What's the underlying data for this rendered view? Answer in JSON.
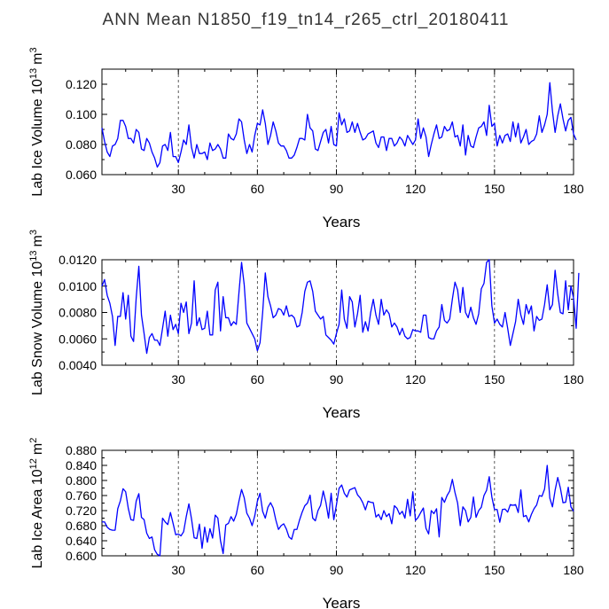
{
  "main_title": "ANN  Mean  N1850_f19_tn14_r265_ctrl_20180411",
  "chart_data": [
    {
      "type": "line",
      "title": "",
      "ylabel": "Lab Ice Volume 10",
      "ylabel_sup": "13",
      "ylabel_unit": "m",
      "ylabel_unit_sup": "3",
      "xlabel": "Years",
      "xlim": [
        1,
        180
      ],
      "ylim": [
        0.06,
        0.13
      ],
      "yticks": [
        0.06,
        0.08,
        0.1,
        0.12
      ],
      "yticklabels": [
        "0.060",
        "0.080",
        "0.100",
        "0.120"
      ],
      "xticks": [
        30,
        60,
        90,
        120,
        150,
        180
      ],
      "xticklabels": [
        "30",
        "60",
        "90",
        "120",
        "150",
        "180"
      ],
      "vlines": [
        30,
        60,
        90,
        120,
        150
      ],
      "line_color": "#0000ff",
      "series": [
        {
          "name": "Lab Ice Volume",
          "values": [
            0.091,
            0.082,
            0.075,
            0.072,
            0.079,
            0.08,
            0.084,
            0.096,
            0.096,
            0.092,
            0.084,
            0.084,
            0.081,
            0.09,
            0.088,
            0.077,
            0.076,
            0.084,
            0.081,
            0.075,
            0.071,
            0.065,
            0.068,
            0.079,
            0.08,
            0.076,
            0.088,
            0.072,
            0.072,
            0.068,
            0.075,
            0.083,
            0.08,
            0.093,
            0.078,
            0.071,
            0.08,
            0.074,
            0.074,
            0.075,
            0.07,
            0.081,
            0.076,
            0.077,
            0.08,
            0.077,
            0.071,
            0.071,
            0.087,
            0.084,
            0.083,
            0.087,
            0.097,
            0.095,
            0.083,
            0.074,
            0.08,
            0.075,
            0.086,
            0.094,
            0.093,
            0.103,
            0.094,
            0.08,
            0.086,
            0.095,
            0.089,
            0.081,
            0.079,
            0.079,
            0.076,
            0.071,
            0.071,
            0.073,
            0.078,
            0.084,
            0.084,
            0.083,
            0.1,
            0.091,
            0.089,
            0.077,
            0.076,
            0.082,
            0.088,
            0.09,
            0.081,
            0.092,
            0.08,
            0.079,
            0.101,
            0.093,
            0.097,
            0.088,
            0.089,
            0.095,
            0.088,
            0.094,
            0.088,
            0.083,
            0.084,
            0.087,
            0.088,
            0.089,
            0.081,
            0.078,
            0.085,
            0.085,
            0.076,
            0.084,
            0.084,
            0.079,
            0.081,
            0.085,
            0.083,
            0.079,
            0.086,
            0.083,
            0.08,
            0.083,
            0.097,
            0.084,
            0.091,
            0.085,
            0.072,
            0.08,
            0.087,
            0.093,
            0.084,
            0.085,
            0.092,
            0.089,
            0.09,
            0.095,
            0.085,
            0.086,
            0.079,
            0.093,
            0.073,
            0.086,
            0.079,
            0.078,
            0.085,
            0.091,
            0.092,
            0.095,
            0.086,
            0.106,
            0.092,
            0.094,
            0.079,
            0.086,
            0.081,
            0.086,
            0.087,
            0.082,
            0.095,
            0.085,
            0.094,
            0.081,
            0.085,
            0.09,
            0.08,
            0.082,
            0.083,
            0.087,
            0.099,
            0.088,
            0.093,
            0.1,
            0.121,
            0.102,
            0.088,
            0.099,
            0.107,
            0.097,
            0.089,
            0.096,
            0.098,
            0.087,
            0.083
          ]
        }
      ]
    },
    {
      "type": "line",
      "title": "",
      "ylabel": "Lab Snow Volume 10",
      "ylabel_sup": "13",
      "ylabel_unit": "m",
      "ylabel_unit_sup": "3",
      "xlabel": "Years",
      "xlim": [
        1,
        180
      ],
      "ylim": [
        0.004,
        0.012
      ],
      "yticks": [
        0.004,
        0.006,
        0.008,
        0.01,
        0.012
      ],
      "yticklabels": [
        "0.0040",
        "0.0060",
        "0.0080",
        "0.0100",
        "0.0120"
      ],
      "xticks": [
        30,
        60,
        90,
        120,
        150,
        180
      ],
      "xticklabels": [
        "30",
        "60",
        "90",
        "120",
        "150",
        "180"
      ],
      "vlines": [
        30,
        60,
        90,
        120,
        150
      ],
      "line_color": "#0000ff",
      "series": [
        {
          "name": "Lab Snow Volume",
          "values": [
            0.01,
            0.0105,
            0.0093,
            0.0087,
            0.0077,
            0.0055,
            0.0077,
            0.0077,
            0.0095,
            0.0075,
            0.0093,
            0.0062,
            0.0058,
            0.0091,
            0.0115,
            0.0078,
            0.0064,
            0.0049,
            0.0061,
            0.0064,
            0.0059,
            0.0059,
            0.0055,
            0.0068,
            0.0081,
            0.0062,
            0.0078,
            0.0067,
            0.0071,
            0.0064,
            0.0087,
            0.008,
            0.0088,
            0.0064,
            0.0072,
            0.0104,
            0.007,
            0.0076,
            0.0067,
            0.0068,
            0.0081,
            0.0063,
            0.0063,
            0.0097,
            0.0103,
            0.0066,
            0.0092,
            0.0076,
            0.0076,
            0.007,
            0.0073,
            0.0071,
            0.0095,
            0.0118,
            0.0101,
            0.0072,
            0.0068,
            0.0064,
            0.006,
            0.0051,
            0.0057,
            0.008,
            0.011,
            0.0092,
            0.0085,
            0.0076,
            0.0078,
            0.0083,
            0.0082,
            0.0078,
            0.0085,
            0.0077,
            0.0078,
            0.0076,
            0.0069,
            0.007,
            0.008,
            0.0096,
            0.0103,
            0.0104,
            0.0096,
            0.0081,
            0.0078,
            0.0075,
            0.0077,
            0.0063,
            0.0061,
            0.0059,
            0.0056,
            0.0064,
            0.0071,
            0.0097,
            0.0075,
            0.0068,
            0.0092,
            0.0088,
            0.0069,
            0.0079,
            0.0093,
            0.0065,
            0.0073,
            0.0066,
            0.008,
            0.009,
            0.0078,
            0.0071,
            0.009,
            0.0078,
            0.0082,
            0.0079,
            0.0069,
            0.0072,
            0.0069,
            0.0063,
            0.0068,
            0.0062,
            0.006,
            0.0061,
            0.0067,
            0.0066,
            0.0066,
            0.0065,
            0.0078,
            0.0078,
            0.0061,
            0.006,
            0.006,
            0.0066,
            0.0069,
            0.0086,
            0.0074,
            0.0072,
            0.0075,
            0.009,
            0.0103,
            0.0097,
            0.008,
            0.0099,
            0.008,
            0.0076,
            0.0084,
            0.0076,
            0.0071,
            0.0079,
            0.0098,
            0.0102,
            0.0118,
            0.012,
            0.0085,
            0.0072,
            0.0075,
            0.0071,
            0.0069,
            0.008,
            0.0068,
            0.0055,
            0.0064,
            0.0073,
            0.009,
            0.0078,
            0.0071,
            0.0086,
            0.0079,
            0.0085,
            0.0066,
            0.0077,
            0.0074,
            0.0075,
            0.0086,
            0.0101,
            0.0082,
            0.0086,
            0.0112,
            0.0094,
            0.008,
            0.0079,
            0.0104,
            0.0082,
            0.01,
            0.0091,
            0.0068,
            0.011
          ]
        }
      ]
    },
    {
      "type": "line",
      "title": "",
      "ylabel": "Lab Ice Area 10",
      "ylabel_sup": "12",
      "ylabel_unit": "m",
      "ylabel_unit_sup": "2",
      "xlabel": "Years",
      "xlim": [
        1,
        180
      ],
      "ylim": [
        0.6,
        0.88
      ],
      "yticks": [
        0.6,
        0.64,
        0.68,
        0.72,
        0.76,
        0.8,
        0.84,
        0.88
      ],
      "yticklabels": [
        "0.600",
        "0.640",
        "0.680",
        "0.720",
        "0.760",
        "0.800",
        "0.840",
        "0.880"
      ],
      "xticks": [
        30,
        60,
        90,
        120,
        150,
        180
      ],
      "xticklabels": [
        "30",
        "60",
        "90",
        "120",
        "150",
        "180"
      ],
      "vlines": [
        30,
        60,
        90,
        120,
        150
      ],
      "line_color": "#0000ff",
      "series": [
        {
          "name": "Lab Ice Area",
          "values": [
            0.69,
            0.69,
            0.676,
            0.67,
            0.668,
            0.668,
            0.725,
            0.746,
            0.778,
            0.77,
            0.726,
            0.696,
            0.694,
            0.745,
            0.765,
            0.702,
            0.696,
            0.66,
            0.646,
            0.65,
            0.616,
            0.604,
            0.6,
            0.7,
            0.69,
            0.683,
            0.715,
            0.686,
            0.656,
            0.658,
            0.653,
            0.664,
            0.704,
            0.738,
            0.698,
            0.648,
            0.646,
            0.684,
            0.62,
            0.676,
            0.636,
            0.672,
            0.647,
            0.708,
            0.7,
            0.64,
            0.606,
            0.682,
            0.686,
            0.704,
            0.692,
            0.71,
            0.745,
            0.776,
            0.754,
            0.713,
            0.7,
            0.68,
            0.706,
            0.745,
            0.766,
            0.718,
            0.7,
            0.729,
            0.741,
            0.727,
            0.695,
            0.67,
            0.68,
            0.685,
            0.671,
            0.65,
            0.644,
            0.67,
            0.67,
            0.695,
            0.716,
            0.733,
            0.74,
            0.761,
            0.7,
            0.693,
            0.72,
            0.734,
            0.772,
            0.742,
            0.7,
            0.766,
            0.696,
            0.735,
            0.779,
            0.788,
            0.766,
            0.756,
            0.775,
            0.778,
            0.781,
            0.762,
            0.754,
            0.741,
            0.722,
            0.745,
            0.742,
            0.741,
            0.703,
            0.71,
            0.696,
            0.72,
            0.704,
            0.712,
            0.685,
            0.733,
            0.726,
            0.71,
            0.718,
            0.7,
            0.75,
            0.706,
            0.77,
            0.694,
            0.702,
            0.715,
            0.727,
            0.673,
            0.658,
            0.72,
            0.712,
            0.725,
            0.65,
            0.755,
            0.742,
            0.76,
            0.772,
            0.803,
            0.768,
            0.74,
            0.68,
            0.73,
            0.72,
            0.69,
            0.702,
            0.756,
            0.702,
            0.72,
            0.729,
            0.76,
            0.774,
            0.81,
            0.756,
            0.723,
            0.723,
            0.689,
            0.723,
            0.724,
            0.716,
            0.736,
            0.734,
            0.736,
            0.715,
            0.775,
            0.704,
            0.707,
            0.69,
            0.71,
            0.725,
            0.735,
            0.76,
            0.758,
            0.777,
            0.84,
            0.753,
            0.73,
            0.774,
            0.808,
            0.78,
            0.741,
            0.742,
            0.782,
            0.73,
            0.718
          ]
        }
      ]
    }
  ]
}
